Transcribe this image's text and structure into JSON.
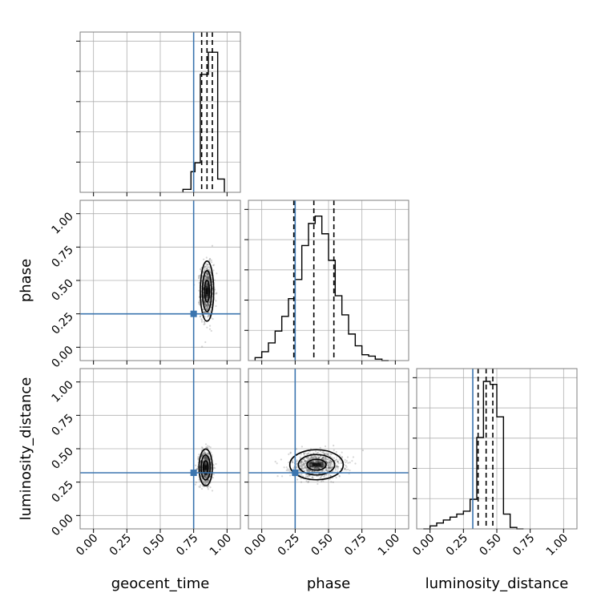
{
  "chart_data": {
    "type": "corner",
    "parameters": [
      "geocent_time",
      "phase",
      "luminosity_distance"
    ],
    "axis_range": [
      -0.1,
      1.1
    ],
    "ticks": [
      0.0,
      0.25,
      0.5,
      0.75,
      1.0
    ],
    "tick_labels": [
      "0.00",
      "0.25",
      "0.50",
      "0.75",
      "1.00"
    ],
    "grid": true,
    "colors": {
      "truth": "#3b75af",
      "contour": "#000000",
      "scatter": "#444444",
      "grid": "#b0b0b0",
      "frame": "#7f7f7f"
    },
    "truths": [
      0.75,
      0.25,
      0.32
    ],
    "quantiles": [
      [
        0.81,
        0.85,
        0.89
      ],
      [
        0.24,
        0.39,
        0.54
      ],
      [
        0.36,
        0.42,
        0.47
      ]
    ],
    "histograms": [
      {
        "parameter": "geocent_time",
        "bin_edges": [
          0.67,
          0.73,
          0.76,
          0.8,
          0.83,
          0.86,
          0.9,
          0.93,
          0.98
        ],
        "counts": [
          0.02,
          0.14,
          0.2,
          0.8,
          0.8,
          0.95,
          0.95,
          0.09
        ]
      },
      {
        "parameter": "phase",
        "bin_edges": [
          -0.05,
          0.0,
          0.05,
          0.1,
          0.15,
          0.2,
          0.25,
          0.3,
          0.35,
          0.4,
          0.45,
          0.5,
          0.55,
          0.6,
          0.65,
          0.7,
          0.75,
          0.8,
          0.85,
          0.9,
          0.95
        ],
        "counts": [
          0.02,
          0.06,
          0.12,
          0.2,
          0.3,
          0.42,
          0.55,
          0.78,
          0.93,
          0.98,
          0.86,
          0.68,
          0.44,
          0.31,
          0.18,
          0.1,
          0.04,
          0.03,
          0.01,
          0.0
        ]
      },
      {
        "parameter": "luminosity_distance",
        "bin_edges": [
          -0.05,
          0.0,
          0.05,
          0.1,
          0.15,
          0.2,
          0.25,
          0.3,
          0.35,
          0.4,
          0.45,
          0.5,
          0.55,
          0.6,
          0.65,
          0.7
        ],
        "counts": [
          0.0,
          0.02,
          0.04,
          0.06,
          0.08,
          0.1,
          0.12,
          0.2,
          0.62,
          1.0,
          0.98,
          0.76,
          0.1,
          0.01,
          0.0
        ]
      }
    ],
    "scatter_clouds": [
      {
        "x_param": "geocent_time",
        "y_param": "phase",
        "center": [
          0.85,
          0.42
        ],
        "spread": [
          0.04,
          0.18
        ]
      },
      {
        "x_param": "geocent_time",
        "y_param": "luminosity_distance",
        "center": [
          0.84,
          0.36
        ],
        "spread": [
          0.04,
          0.11
        ]
      },
      {
        "x_param": "phase",
        "y_param": "luminosity_distance",
        "center": [
          0.41,
          0.38
        ],
        "spread": [
          0.16,
          0.09
        ]
      }
    ]
  }
}
